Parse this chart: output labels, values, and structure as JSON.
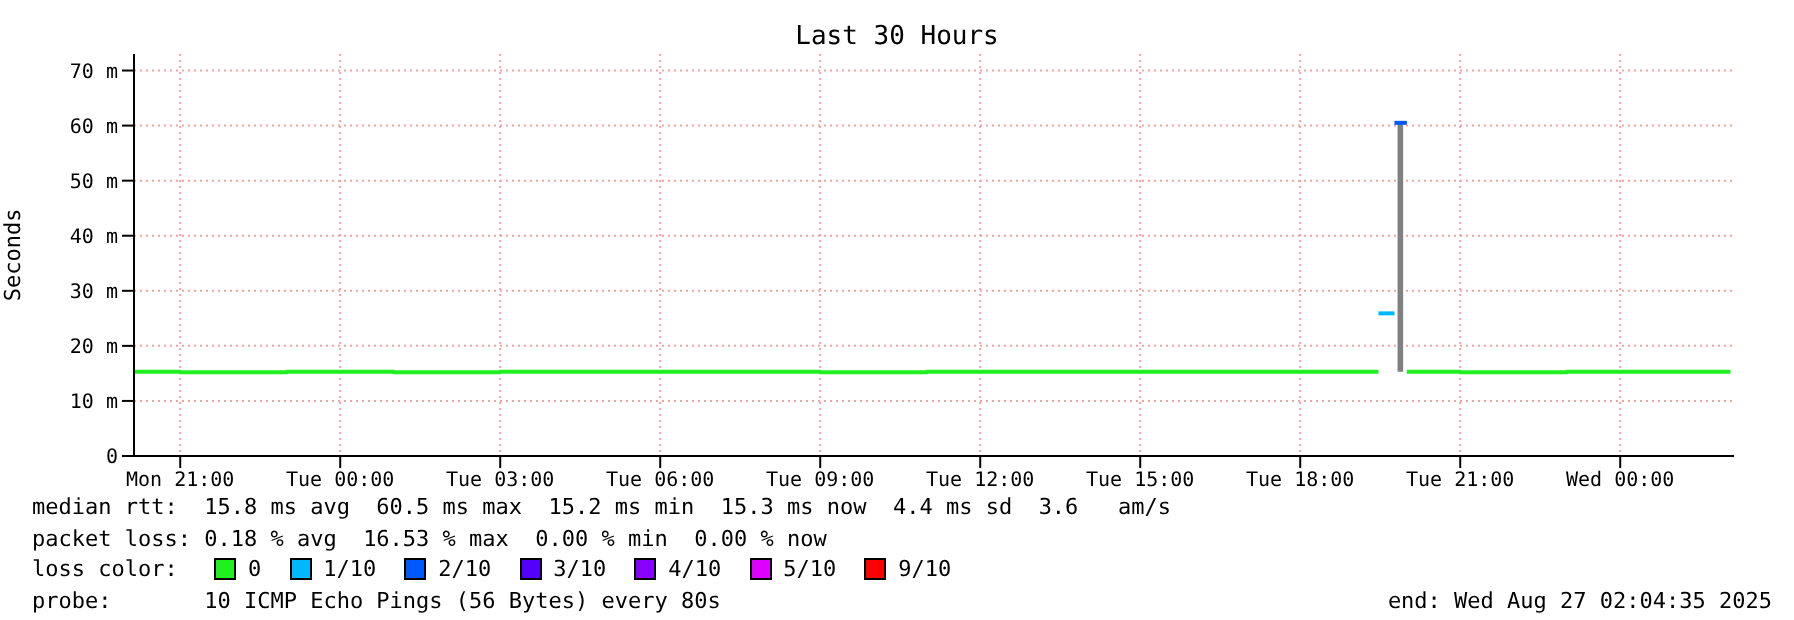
{
  "chart_data": {
    "type": "step",
    "title": "Last 30 Hours",
    "ylabel": "Seconds",
    "legend_title": "loss color:",
    "legend": "bottom",
    "grid": true,
    "x": [
      "2025-08-25T20:08",
      "2025-08-25T21:00",
      "2025-08-25T23:00",
      "2025-08-26T01:00",
      "2025-08-26T03:00",
      "2025-08-26T05:00",
      "2025-08-26T07:00",
      "2025-08-26T09:00",
      "2025-08-26T11:00",
      "2025-08-26T13:00",
      "2025-08-26T15:00",
      "2025-08-26T17:00",
      "2025-08-26T19:00",
      "2025-08-26T19:28",
      "2025-08-26T19:46",
      "2025-08-26T19:53",
      "2025-08-26T20:00",
      "2025-08-26T21:00",
      "2025-08-26T23:00",
      "2025-08-27T01:00",
      "2025-08-27T02:04"
    ],
    "series": [
      {
        "name": "0",
        "color": "#20f020",
        "values": [
          15.3,
          15.2,
          15.3,
          15.2,
          15.3,
          15.3,
          15.3,
          15.2,
          15.3,
          15.3,
          15.3,
          15.3,
          15.3,
          15.3,
          null,
          null,
          15.3,
          15.2,
          15.3,
          15.3,
          15.3
        ]
      },
      {
        "name": "1/10",
        "color": "#00b8ff",
        "values": [
          null,
          null,
          null,
          null,
          null,
          null,
          null,
          null,
          null,
          null,
          null,
          null,
          null,
          25.9,
          25.9,
          null,
          null,
          null,
          null,
          null,
          null
        ]
      },
      {
        "name": "2/10",
        "color": "#0059ff",
        "values": [
          null,
          null,
          null,
          null,
          null,
          null,
          null,
          null,
          null,
          null,
          null,
          null,
          null,
          null,
          60.5,
          60.5,
          60.5,
          null,
          null,
          null,
          null
        ]
      },
      {
        "name": "3/10",
        "color": "#5500ff",
        "values": [
          null,
          null,
          null,
          null,
          null,
          null,
          null,
          null,
          null,
          null,
          null,
          null,
          null,
          null,
          null,
          null,
          null,
          null,
          null,
          null,
          null
        ]
      },
      {
        "name": "4/10",
        "color": "#8800ff",
        "values": [
          null,
          null,
          null,
          null,
          null,
          null,
          null,
          null,
          null,
          null,
          null,
          null,
          null,
          null,
          null,
          null,
          null,
          null,
          null,
          null,
          null
        ]
      },
      {
        "name": "5/10",
        "color": "#dd00ff",
        "values": [
          null,
          null,
          null,
          null,
          null,
          null,
          null,
          null,
          null,
          null,
          null,
          null,
          null,
          null,
          null,
          null,
          null,
          null,
          null,
          null,
          null
        ]
      },
      {
        "name": "9/10",
        "color": "#ff0000",
        "values": [
          null,
          null,
          null,
          null,
          null,
          null,
          null,
          null,
          null,
          null,
          null,
          null,
          null,
          null,
          null,
          null,
          null,
          null,
          null,
          null,
          null
        ]
      },
      {
        "type": "bar",
        "color": "#808080",
        "base": [
          null,
          null,
          null,
          null,
          null,
          null,
          null,
          null,
          null,
          null,
          null,
          null,
          null,
          null,
          null,
          15.3,
          null,
          null,
          null,
          null,
          null
        ],
        "values": [
          null,
          null,
          null,
          null,
          null,
          null,
          null,
          null,
          null,
          null,
          null,
          null,
          null,
          null,
          null,
          45.2,
          null,
          null,
          null,
          null,
          null
        ]
      }
    ],
    "xlim": [
      "2025-08-25T20:08",
      "2025-08-27T02:08"
    ],
    "xticks": [
      {
        "value": "2025-08-25T21:00",
        "label": "Mon 21:00"
      },
      {
        "value": "2025-08-26T00:00",
        "label": "Tue 00:00"
      },
      {
        "value": "2025-08-26T03:00",
        "label": "Tue 03:00"
      },
      {
        "value": "2025-08-26T06:00",
        "label": "Tue 06:00"
      },
      {
        "value": "2025-08-26T09:00",
        "label": "Tue 09:00"
      },
      {
        "value": "2025-08-26T12:00",
        "label": "Tue 12:00"
      },
      {
        "value": "2025-08-26T15:00",
        "label": "Tue 15:00"
      },
      {
        "value": "2025-08-26T18:00",
        "label": "Tue 18:00"
      },
      {
        "value": "2025-08-26T21:00",
        "label": "Tue 21:00"
      },
      {
        "value": "2025-08-27T00:00",
        "label": "Wed 00:00"
      }
    ],
    "ylim": [
      0,
      73
    ],
    "yticks": [
      0,
      {
        "value": 10,
        "label": "10 m"
      },
      {
        "value": 20,
        "label": "20 m"
      },
      {
        "value": 30,
        "label": "30 m"
      },
      {
        "value": 40,
        "label": "40 m"
      },
      {
        "value": 50,
        "label": "50 m"
      },
      {
        "value": 60,
        "label": "60 m"
      },
      {
        "value": 70,
        "label": "70 m"
      }
    ],
    "annotations": [
      "median rtt:  15.8 ms avg  60.5 ms max  15.2 ms min  15.3 ms now  4.4 ms sd  3.6   am/s",
      "packet loss: 0.18 % avg  16.53 % max  0.00 % min  0.00 % now",
      "probe:       10 ICMP Echo Pings (56 Bytes) every 80s",
      "end: Wed Aug 27 02:04:35 2025"
    ]
  }
}
